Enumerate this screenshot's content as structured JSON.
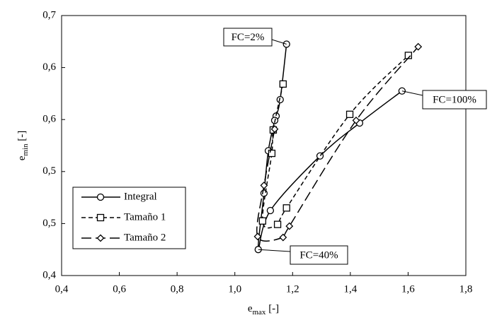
{
  "chart_data": {
    "type": "line",
    "xlabel": {
      "main": "e",
      "sub": "max",
      "rest": " [-]"
    },
    "ylabel": {
      "main": "e",
      "sub": "min",
      "rest": " [-]"
    },
    "xlim": [
      0.4,
      1.8
    ],
    "ylim": [
      0.4,
      0.7
    ],
    "xticks": [
      {
        "value": 0.4,
        "label": "0,4"
      },
      {
        "value": 0.6,
        "label": "0,6"
      },
      {
        "value": 0.8,
        "label": "0,8"
      },
      {
        "value": 1.0,
        "label": "1,0"
      },
      {
        "value": 1.2,
        "label": "1,2"
      },
      {
        "value": 1.4,
        "label": "1,4"
      },
      {
        "value": 1.6,
        "label": "1,6"
      },
      {
        "value": 1.8,
        "label": "1,8"
      }
    ],
    "yticks": [
      {
        "value": 0.4,
        "label": "0,4"
      },
      {
        "value": 0.46,
        "label": "0,5"
      },
      {
        "value": 0.52,
        "label": "0,5"
      },
      {
        "value": 0.58,
        "label": "0,6"
      },
      {
        "value": 0.64,
        "label": "0,6"
      },
      {
        "value": 0.7,
        "label": "0,7"
      }
    ],
    "grid": false,
    "legend": "lower left",
    "series": [
      {
        "name": "Integral",
        "color": "#000000",
        "marker": "circle",
        "dash": "solid",
        "x": [
          1.179,
          1.157,
          1.143,
          1.138,
          1.116,
          1.101,
          1.081,
          1.123,
          1.295,
          1.432,
          1.579
        ],
        "values": [
          0.667,
          0.603,
          0.584,
          0.579,
          0.544,
          0.495,
          0.43,
          0.475,
          0.538,
          0.576,
          0.613
        ]
      },
      {
        "name": "Tamaño 1",
        "color": "#000000",
        "marker": "square",
        "dash": "short",
        "x": [
          1.167,
          1.133,
          1.128,
          1.096,
          1.148,
          1.179,
          1.398,
          1.601
        ],
        "values": [
          0.621,
          0.568,
          0.541,
          0.463,
          0.459,
          0.478,
          0.586,
          0.654
        ]
      },
      {
        "name": "Tamaño 2",
        "color": "#000000",
        "marker": "diamond",
        "dash": "long",
        "x": [
          1.138,
          1.101,
          1.079,
          1.167,
          1.189,
          1.42,
          1.635
        ],
        "values": [
          0.569,
          0.504,
          0.445,
          0.444,
          0.457,
          0.579,
          0.664
        ]
      }
    ],
    "annotations": [
      "FC=2%",
      "FC=100%",
      "FC=40%"
    ]
  }
}
